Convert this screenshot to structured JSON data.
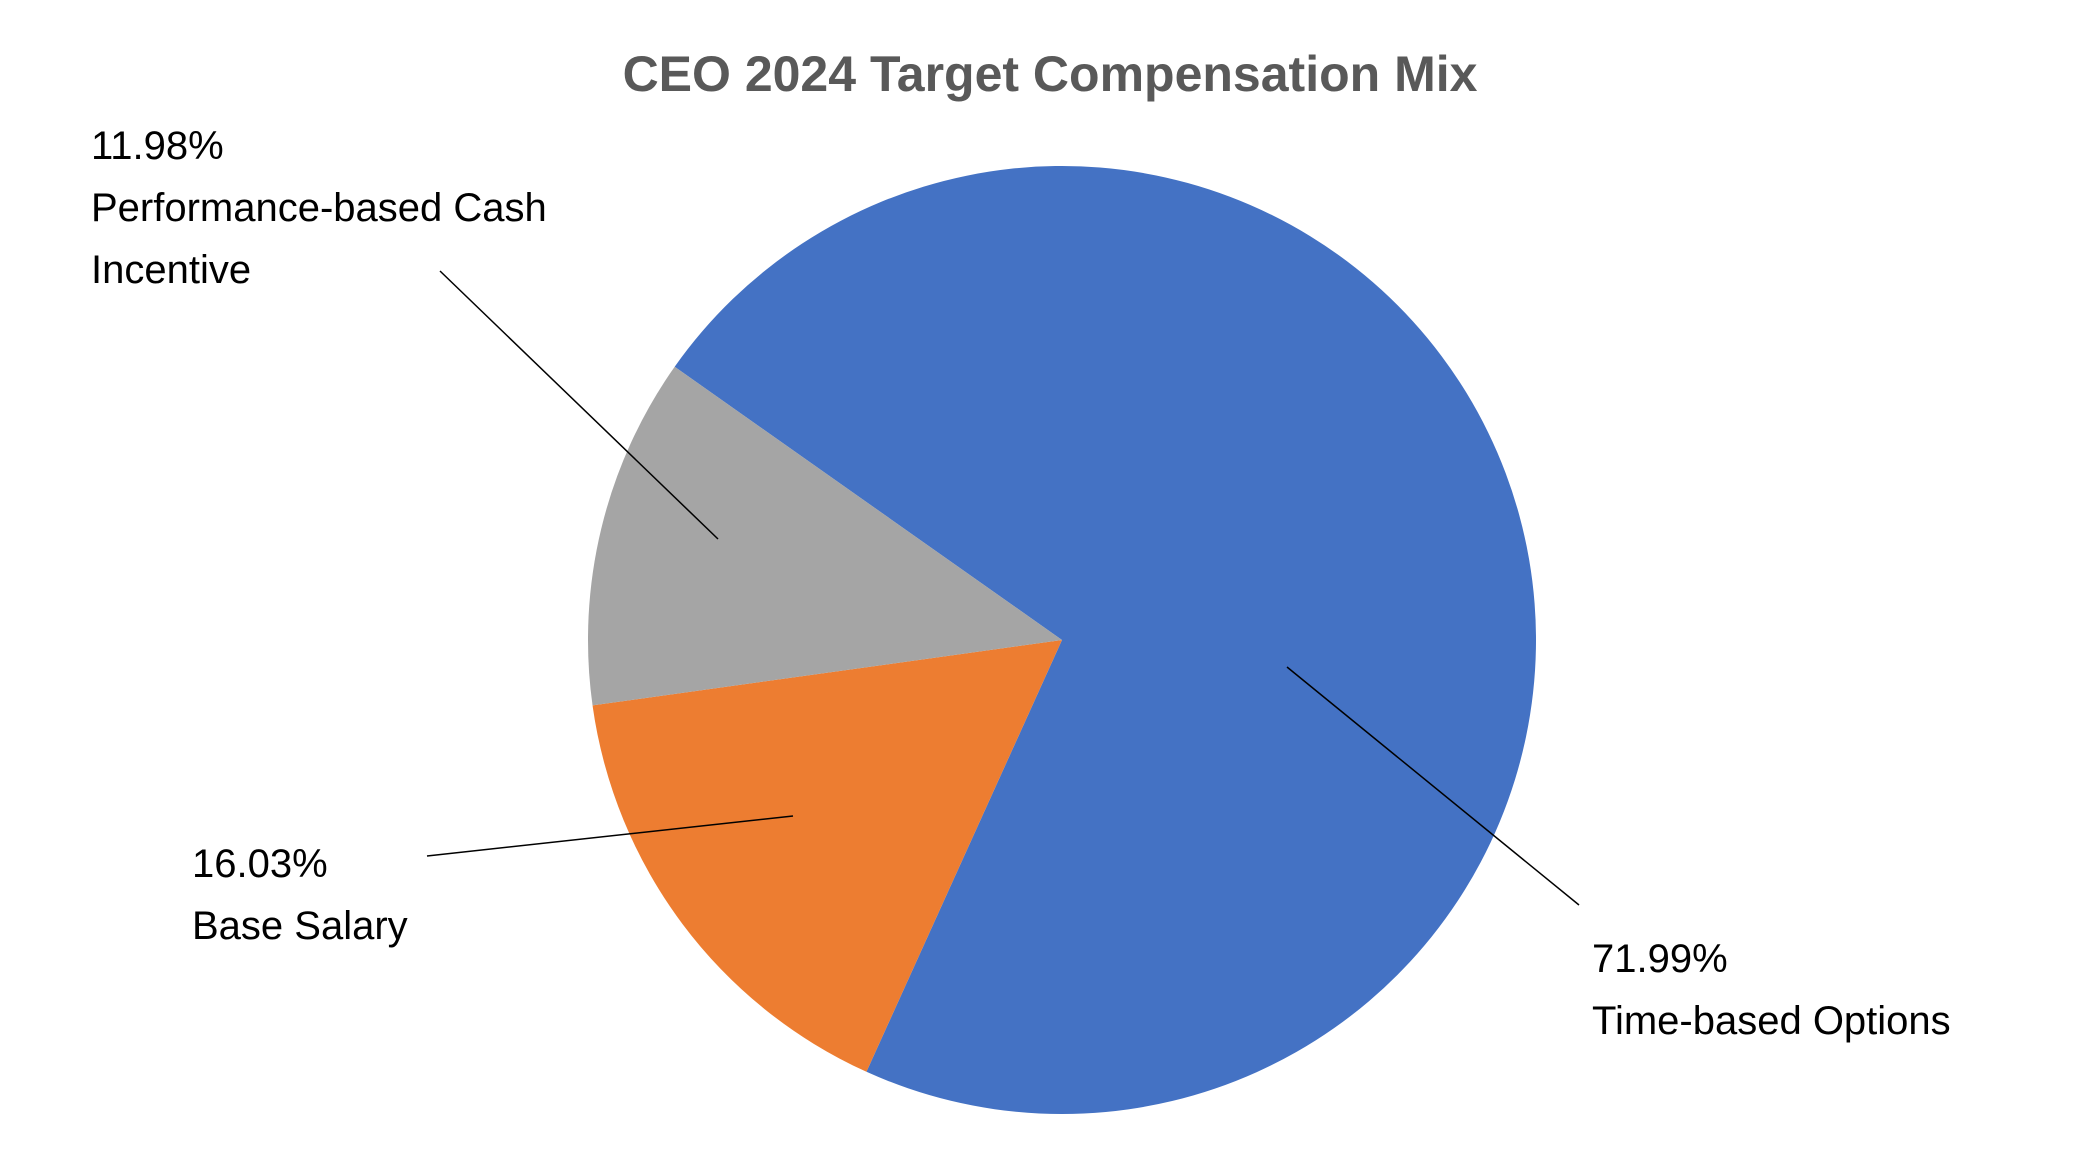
{
  "chart_data": {
    "type": "pie",
    "title": "CEO 2024 Target Compensation Mix",
    "categories": [
      "Time-based Options",
      "Base Salary",
      "Performance-based Cash Incentive"
    ],
    "values": [
      71.99,
      16.03,
      11.98
    ],
    "value_labels": [
      "71.99%",
      "16.03%",
      "11.98%"
    ],
    "colors": [
      "#4472c4",
      "#ed7d31",
      "#a5a5a5"
    ]
  }
}
